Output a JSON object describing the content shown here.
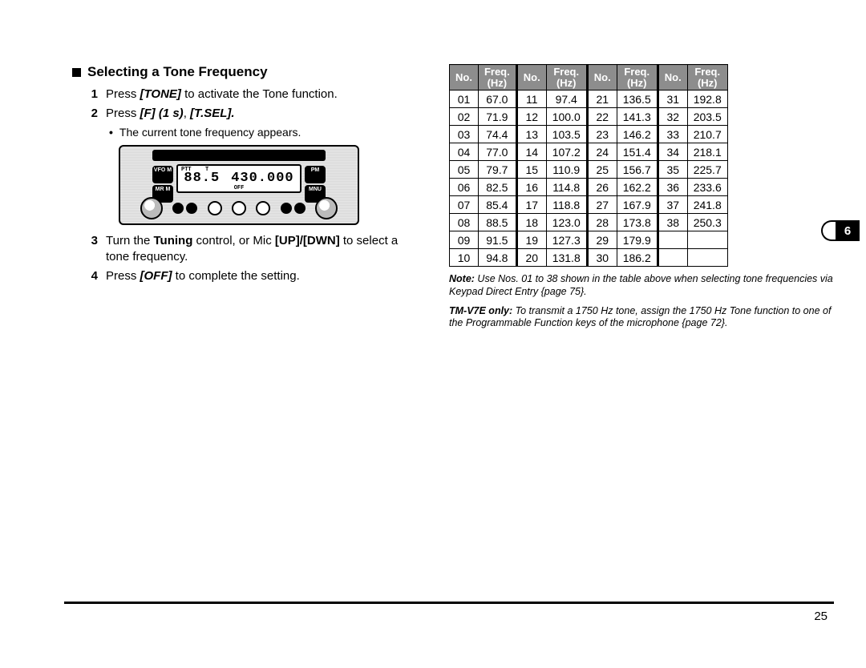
{
  "section_title": "Selecting a Tone Frequency",
  "steps": {
    "s1": {
      "num": "1",
      "pre": "Press ",
      "key": "[TONE]",
      "post": " to activate the Tone function."
    },
    "s2": {
      "num": "2",
      "pre": "Press ",
      "k1": "[F] (1 s)",
      "mid": ", ",
      "k2": "[T.SEL]",
      "post": "."
    },
    "s2sub": "The current tone frequency appears.",
    "s3": {
      "num": "3",
      "pre": "Turn the ",
      "b1": "Tuning",
      "mid1": " control, or Mic ",
      "b2": "[UP]/[DWN]",
      "post": " to select a tone frequency."
    },
    "s4": {
      "num": "4",
      "pre": "Press ",
      "key": "[OFF]",
      "post": " to complete the setting."
    }
  },
  "device": {
    "lcd_left": "88.5",
    "lcd_right": "430.000",
    "ind_ptt": "PTT",
    "ind_t": "T",
    "ind_off": "OFF",
    "btn_vfo": "VFO\nM",
    "btn_mr": "MR\nM",
    "btn_pm": "PM",
    "btn_mnu": "MNU"
  },
  "table": {
    "head_no": "No.",
    "head_freq_top": "Freq.",
    "head_freq_bot": "(Hz)",
    "cols": [
      [
        [
          "01",
          "67.0"
        ],
        [
          "02",
          "71.9"
        ],
        [
          "03",
          "74.4"
        ],
        [
          "04",
          "77.0"
        ],
        [
          "05",
          "79.7"
        ],
        [
          "06",
          "82.5"
        ],
        [
          "07",
          "85.4"
        ],
        [
          "08",
          "88.5"
        ],
        [
          "09",
          "91.5"
        ],
        [
          "10",
          "94.8"
        ]
      ],
      [
        [
          "11",
          "97.4"
        ],
        [
          "12",
          "100.0"
        ],
        [
          "13",
          "103.5"
        ],
        [
          "14",
          "107.2"
        ],
        [
          "15",
          "110.9"
        ],
        [
          "16",
          "114.8"
        ],
        [
          "17",
          "118.8"
        ],
        [
          "18",
          "123.0"
        ],
        [
          "19",
          "127.3"
        ],
        [
          "20",
          "131.8"
        ]
      ],
      [
        [
          "21",
          "136.5"
        ],
        [
          "22",
          "141.3"
        ],
        [
          "23",
          "146.2"
        ],
        [
          "24",
          "151.4"
        ],
        [
          "25",
          "156.7"
        ],
        [
          "26",
          "162.2"
        ],
        [
          "27",
          "167.9"
        ],
        [
          "28",
          "173.8"
        ],
        [
          "29",
          "179.9"
        ],
        [
          "30",
          "186.2"
        ]
      ],
      [
        [
          "31",
          "192.8"
        ],
        [
          "32",
          "203.5"
        ],
        [
          "33",
          "210.7"
        ],
        [
          "34",
          "218.1"
        ],
        [
          "35",
          "225.7"
        ],
        [
          "36",
          "233.6"
        ],
        [
          "37",
          "241.8"
        ],
        [
          "38",
          "250.3"
        ],
        [
          "",
          ""
        ],
        [
          "",
          ""
        ]
      ]
    ]
  },
  "notes": {
    "n1_label": "Note:",
    "n1_text": "   Use Nos. 01 to 38 shown in the table above when selecting tone frequencies via Keypad Direct Entry {page 75}.",
    "n2_label": "TM-V7E only:",
    "n2_text": "   To transmit a 1750 Hz tone, assign the 1750 Hz Tone function to one of the Programmable Function keys of the microphone {page 72}."
  },
  "side_tab": "6",
  "page_number": "25"
}
